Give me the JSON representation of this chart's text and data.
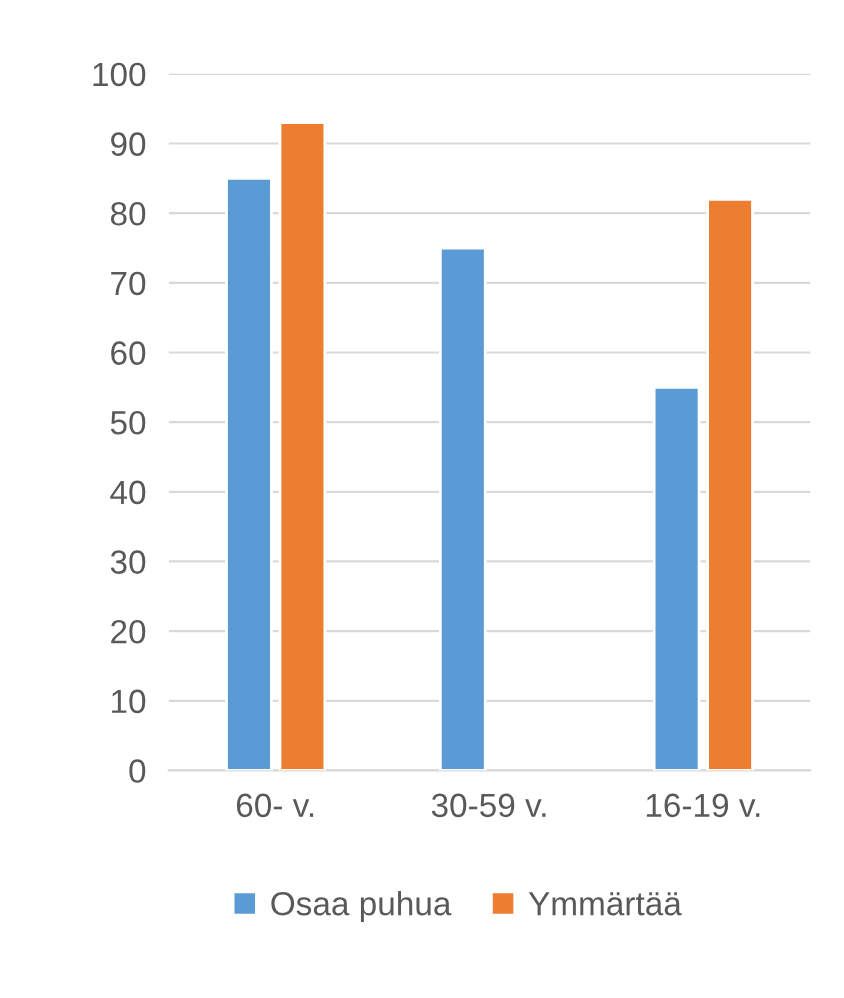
{
  "chart_data": {
    "type": "bar",
    "categories": [
      "60- v.",
      "30-59 v.",
      "16-19 v."
    ],
    "series": [
      {
        "name": "Osaa puhua",
        "color": "#5b9bd5",
        "values": [
          85,
          75,
          55
        ]
      },
      {
        "name": "Ymmärtää",
        "color": "#ed7d31",
        "values": [
          93,
          null,
          82
        ]
      }
    ],
    "ylim": [
      0,
      100
    ],
    "yticks": [
      0,
      10,
      20,
      30,
      40,
      50,
      60,
      70,
      80,
      90,
      100
    ],
    "grid": "y",
    "legend": "bottom"
  }
}
